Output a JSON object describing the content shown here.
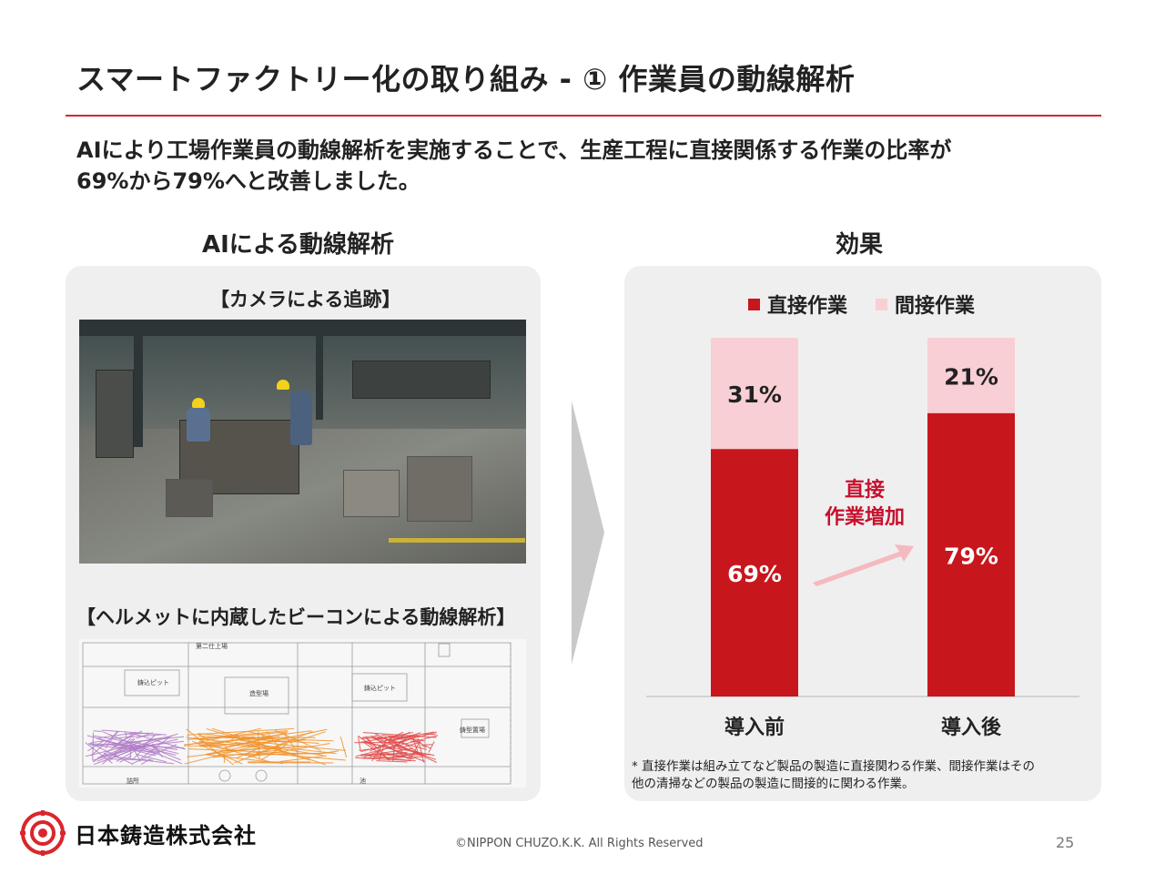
{
  "header": {
    "title": "スマートファクトリー化の取り組み - ① 作業員の動線解析",
    "subtitle_lines": [
      "AIにより工場作業員の動線解析を実施することで、生産工程に直接関係する作業の比率が",
      "69%から79%へと改善しました。"
    ]
  },
  "left_panel": {
    "heading": "AIによる動線解析",
    "camera_label": "【カメラによる追跡】",
    "beacon_label": "【ヘルメットに内蔵したビーコンによる動線解析】",
    "map_labels": [
      "第二仕上場",
      "鋳込ピット",
      "造型場",
      "鋳込ピット",
      "鋳型置場",
      "詰所",
      "池"
    ]
  },
  "right_panel": {
    "heading": "効果",
    "arrow_label_lines": [
      "直接",
      "作業増加"
    ],
    "footnote_lines": [
      "* 直接作業は組み立てなど製品の製造に直接関わる作業、間接作業はその",
      "他の清掃などの製品の製造に間接的に関わる作業。"
    ]
  },
  "chart_data": {
    "type": "bar",
    "stacked": true,
    "percent": true,
    "categories": [
      "導入前",
      "導入後"
    ],
    "series": [
      {
        "name": "直接作業",
        "values": [
          69,
          79
        ],
        "color": "#c8161d",
        "label_color": "#ffffff"
      },
      {
        "name": "間接作業",
        "values": [
          31,
          21
        ],
        "color": "#f8cfd4",
        "label_color": "#222222"
      }
    ],
    "ylim": [
      0,
      100
    ],
    "legend": "top",
    "grid": false
  },
  "footer": {
    "company": "日本鋳造株式会社",
    "copyright": "©NIPPON CHUZO.K.K. All Rights Reserved",
    "page": "25"
  },
  "colors": {
    "accent": "#d9262c",
    "panel_bg": "#efefef"
  }
}
